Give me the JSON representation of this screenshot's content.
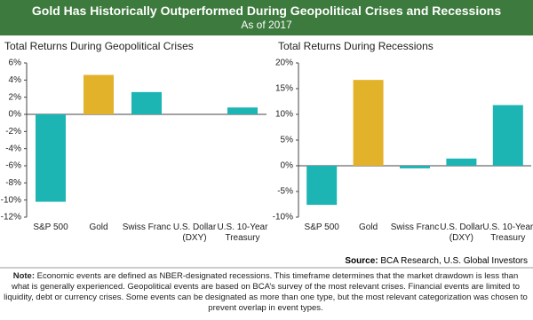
{
  "header": {
    "title": "Gold Has Historically Outperformed During Geopolitical Crises and Recessions",
    "subtitle": "As of 2017"
  },
  "chart_data": [
    {
      "type": "bar",
      "title": "Total Returns During Geopolitical Crises",
      "categories": [
        "S&P 500",
        "Gold",
        "Swiss Franc",
        "U.S. Dollar\n(DXY)",
        "U.S. 10-Year\nTreasury"
      ],
      "values": [
        -10.2,
        4.6,
        2.6,
        0,
        0.8
      ],
      "colors": [
        "#1cb5b3",
        "#e3b22b",
        "#1cb5b3",
        "#1cb5b3",
        "#1cb5b3"
      ],
      "ylim": [
        -12,
        6
      ],
      "yticks": [
        {
          "value": 6,
          "label": "6%"
        },
        {
          "value": 4,
          "label": "4%"
        },
        {
          "value": 2,
          "label": "2%"
        },
        {
          "value": 0,
          "label": "0%"
        },
        {
          "value": -2,
          "label": "-2%"
        },
        {
          "value": -4,
          "label": "-4%"
        },
        {
          "value": -6,
          "label": "-6%"
        },
        {
          "value": -8,
          "label": "-8%"
        },
        {
          "value": -10,
          "label": "-10%"
        },
        {
          "value": -12,
          "label": "-12%"
        }
      ]
    },
    {
      "type": "bar",
      "title": "Total Returns During Recessions",
      "categories": [
        "S&P 500",
        "Gold",
        "Swiss Franc",
        "U.S. Dollar\n(DXY)",
        "U.S. 10-Year\nTreasury"
      ],
      "values": [
        -7.6,
        16.7,
        -0.5,
        1.4,
        11.8
      ],
      "colors": [
        "#1cb5b3",
        "#e3b22b",
        "#1cb5b3",
        "#1cb5b3",
        "#1cb5b3"
      ],
      "ylim": [
        -10,
        20
      ],
      "yticks": [
        {
          "value": 20,
          "label": "20%"
        },
        {
          "value": 15,
          "label": "15%"
        },
        {
          "value": 10,
          "label": "10%"
        },
        {
          "value": 5,
          "label": "5%"
        },
        {
          "value": 0,
          "label": "0%"
        },
        {
          "value": -5,
          "label": "-5%"
        },
        {
          "value": -10,
          "label": "-10%"
        }
      ]
    }
  ],
  "source": {
    "label": "Source:",
    "text": "BCA Research, U.S. Global Investors"
  },
  "note": {
    "label": "Note:",
    "text": "Economic events are defined as NBER-designated recessions. This timeframe determines that the market drawdown is less than what is generally experienced. Geopolitical events are based on BCA’s survey of the most relevant crises. Financial events are limited to liquidity, debt or currency crises. Some events can be designated as more than one type, but the most relevant categorization was chosen to prevent overlap in event types."
  }
}
